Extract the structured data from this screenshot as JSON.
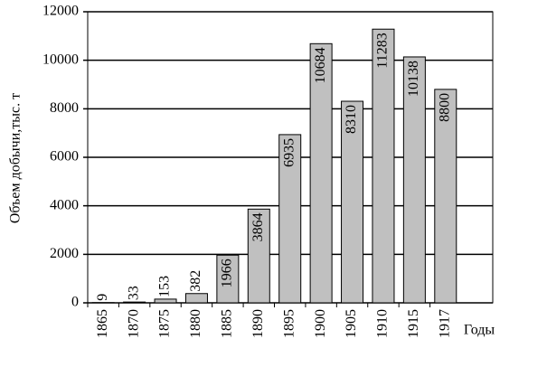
{
  "chart_data": {
    "type": "bar",
    "y_label": "Объем добычи,тыс. т",
    "x_label": "Годы",
    "categories": [
      "1865",
      "1870",
      "1875",
      "1880",
      "1885",
      "1890",
      "1895",
      "1900",
      "1905",
      "1910",
      "1915",
      "1917"
    ],
    "values": [
      9,
      33,
      153,
      382,
      1966,
      3864,
      6935,
      10684,
      8310,
      11283,
      10138,
      8800
    ],
    "color": "#c0c0c0",
    "ylim": [
      0,
      12000
    ],
    "yticks": [
      0,
      2000,
      4000,
      6000,
      8000,
      10000,
      12000
    ],
    "grid": true
  }
}
